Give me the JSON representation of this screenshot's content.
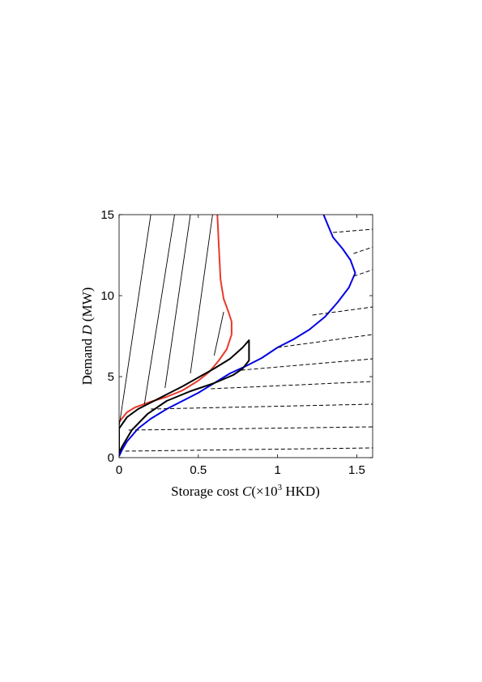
{
  "chart_data": {
    "type": "line",
    "xlabel": {
      "pre": "Storage cost ",
      "var": "C",
      "mid": "(×10",
      "exp": "3",
      "post": " HKD)"
    },
    "ylabel": {
      "pre": "Demand ",
      "var": "D",
      "post": " (MW)"
    },
    "xlim": [
      0,
      1.6
    ],
    "ylim": [
      0,
      15
    ],
    "xticks": [
      0,
      0.5,
      1,
      1.5
    ],
    "xtick_labels": [
      "0",
      "0.5",
      "1",
      "1.5"
    ],
    "yticks": [
      0,
      5,
      10,
      15
    ],
    "ytick_labels": [
      "0",
      "5",
      "10",
      "15"
    ],
    "grid": false,
    "legend": "none",
    "series": [
      {
        "color": "#e8392b",
        "style": "solid",
        "points": [
          [
            0,
            2.2
          ],
          [
            0.05,
            2.8
          ],
          [
            0.1,
            3.1
          ],
          [
            0.2,
            3.45
          ],
          [
            0.3,
            3.75
          ],
          [
            0.4,
            4.15
          ],
          [
            0.5,
            4.75
          ],
          [
            0.57,
            5.3
          ],
          [
            0.63,
            6.0
          ],
          [
            0.68,
            6.7
          ],
          [
            0.71,
            7.6
          ],
          [
            0.71,
            8.4
          ],
          [
            0.69,
            9.0
          ],
          [
            0.66,
            9.8
          ],
          [
            0.64,
            11.0
          ],
          [
            0.63,
            13.0
          ],
          [
            0.62,
            15.0
          ]
        ]
      },
      {
        "color": "#0000e6",
        "style": "solid",
        "points": [
          [
            0,
            0.1
          ],
          [
            0.02,
            0.5
          ],
          [
            0.05,
            1.0
          ],
          [
            0.12,
            1.8
          ],
          [
            0.2,
            2.4
          ],
          [
            0.3,
            3.0
          ],
          [
            0.4,
            3.5
          ],
          [
            0.5,
            4.0
          ],
          [
            0.6,
            4.6
          ],
          [
            0.7,
            5.2
          ],
          [
            0.8,
            5.65
          ],
          [
            0.9,
            6.15
          ],
          [
            1.0,
            6.8
          ],
          [
            1.1,
            7.3
          ],
          [
            1.2,
            7.9
          ],
          [
            1.3,
            8.7
          ],
          [
            1.38,
            9.6
          ],
          [
            1.45,
            10.5
          ],
          [
            1.49,
            11.4
          ],
          [
            1.46,
            12.2
          ],
          [
            1.41,
            12.9
          ],
          [
            1.35,
            13.6
          ],
          [
            1.32,
            14.3
          ],
          [
            1.29,
            15.0
          ]
        ]
      },
      {
        "color": "#000000",
        "style": "solid",
        "closed": true,
        "points": [
          [
            0,
            1.8
          ],
          [
            0.05,
            2.5
          ],
          [
            0.12,
            3.0
          ],
          [
            0.2,
            3.4
          ],
          [
            0.3,
            3.9
          ],
          [
            0.4,
            4.4
          ],
          [
            0.5,
            4.95
          ],
          [
            0.6,
            5.5
          ],
          [
            0.7,
            6.1
          ],
          [
            0.78,
            6.8
          ],
          [
            0.82,
            7.25
          ],
          [
            0.82,
            6.0
          ],
          [
            0.78,
            5.5
          ],
          [
            0.72,
            5.1
          ],
          [
            0.6,
            4.6
          ],
          [
            0.45,
            4.1
          ],
          [
            0.3,
            3.5
          ],
          [
            0.18,
            2.7
          ],
          [
            0.08,
            1.7
          ],
          [
            0.02,
            0.7
          ],
          [
            0,
            0.3
          ]
        ]
      },
      {
        "color": "#000000",
        "style": "thin",
        "segments": [
          [
            [
              0.0,
              1.9
            ],
            [
              0.2,
              15
            ]
          ],
          [
            [
              0.16,
              3.3
            ],
            [
              0.35,
              15
            ]
          ],
          [
            [
              0.29,
              4.3
            ],
            [
              0.45,
              15
            ]
          ],
          [
            [
              0.45,
              5.2
            ],
            [
              0.59,
              15
            ]
          ],
          [
            [
              0.6,
              6.3
            ],
            [
              0.66,
              9.0
            ]
          ]
        ]
      },
      {
        "color": "#000000",
        "style": "dashed",
        "segments": [
          [
            [
              0.04,
              0.4
            ],
            [
              1.6,
              0.6
            ]
          ],
          [
            [
              0.06,
              1.7
            ],
            [
              1.6,
              1.9
            ]
          ],
          [
            [
              0.2,
              3.0
            ],
            [
              1.6,
              3.3
            ]
          ],
          [
            [
              0.58,
              4.25
            ],
            [
              1.6,
              4.7
            ]
          ],
          [
            [
              0.77,
              5.4
            ],
            [
              1.6,
              6.1
            ]
          ],
          [
            [
              1.0,
              6.8
            ],
            [
              1.6,
              7.6
            ]
          ],
          [
            [
              1.22,
              8.8
            ],
            [
              1.6,
              9.3
            ]
          ],
          [
            [
              1.48,
              11.2
            ],
            [
              1.6,
              11.6
            ]
          ],
          [
            [
              1.48,
              12.6
            ],
            [
              1.6,
              13.0
            ]
          ],
          [
            [
              1.35,
              13.9
            ],
            [
              1.6,
              14.1
            ]
          ]
        ]
      }
    ]
  }
}
